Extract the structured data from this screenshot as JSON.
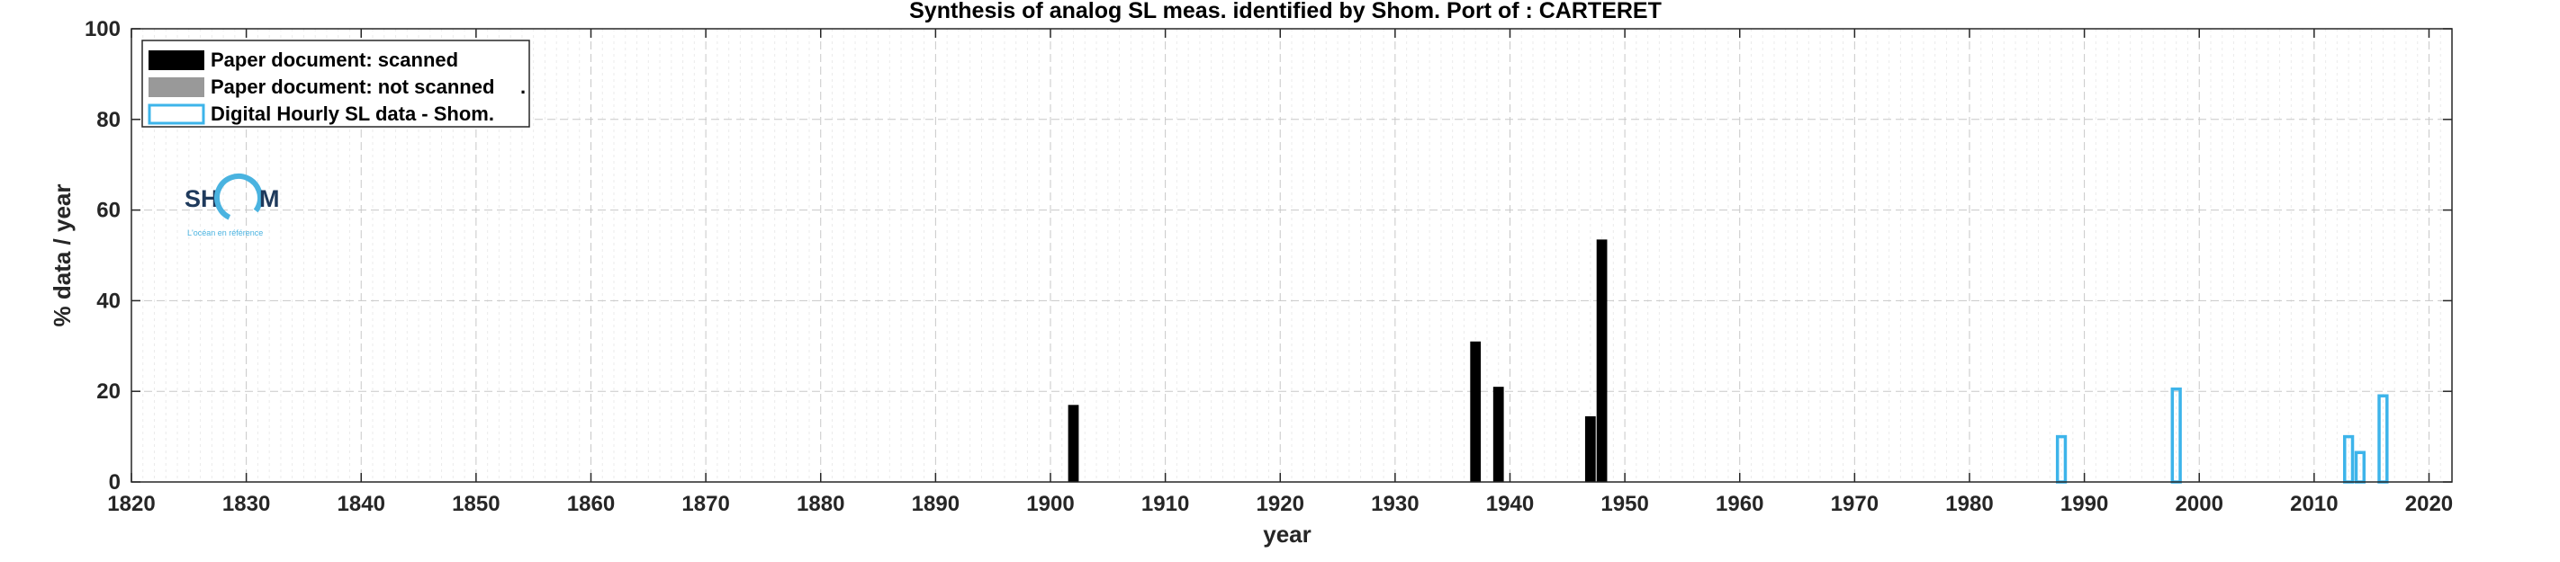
{
  "chart_data": {
    "type": "bar",
    "title": "Synthesis of analog SL meas. identified by Shom. Port of : CARTERET",
    "xlabel": "year",
    "ylabel": "% data / year",
    "xlim": [
      1820,
      2022
    ],
    "ylim": [
      0,
      100
    ],
    "xticks": [
      "1820",
      "1830",
      "1840",
      "1850",
      "1860",
      "1870",
      "1880",
      "1890",
      "1900",
      "1910",
      "1920",
      "1930",
      "1940",
      "1950",
      "1960",
      "1970",
      "1980",
      "1990",
      "2000",
      "2010",
      "2020"
    ],
    "yticks": [
      "0",
      "20",
      "40",
      "60",
      "80",
      "100"
    ],
    "grid": true,
    "legend_position": "top-left",
    "series": [
      {
        "name": "Paper document: scanned",
        "style": "filled",
        "color": "#000000",
        "points": [
          {
            "x": 1902,
            "y": 17
          },
          {
            "x": 1937,
            "y": 31
          },
          {
            "x": 1939,
            "y": 21
          },
          {
            "x": 1947,
            "y": 14.5
          },
          {
            "x": 1948,
            "y": 53.5
          }
        ]
      },
      {
        "name": "Paper document: not scanned",
        "legend_suffix": ".",
        "style": "filled",
        "color": "#999999",
        "points": []
      },
      {
        "name": "Digital Hourly SL data - Shom.",
        "style": "outline",
        "color": "#3db4ea",
        "points": [
          {
            "x": 1988,
            "y": 10
          },
          {
            "x": 1998,
            "y": 20.5
          },
          {
            "x": 2013,
            "y": 10
          },
          {
            "x": 2014,
            "y": 6.5
          },
          {
            "x": 2016,
            "y": 19
          }
        ]
      }
    ]
  },
  "logo": {
    "text_left": "SH",
    "text_right": "M",
    "tagline": "L'océan en référence"
  }
}
